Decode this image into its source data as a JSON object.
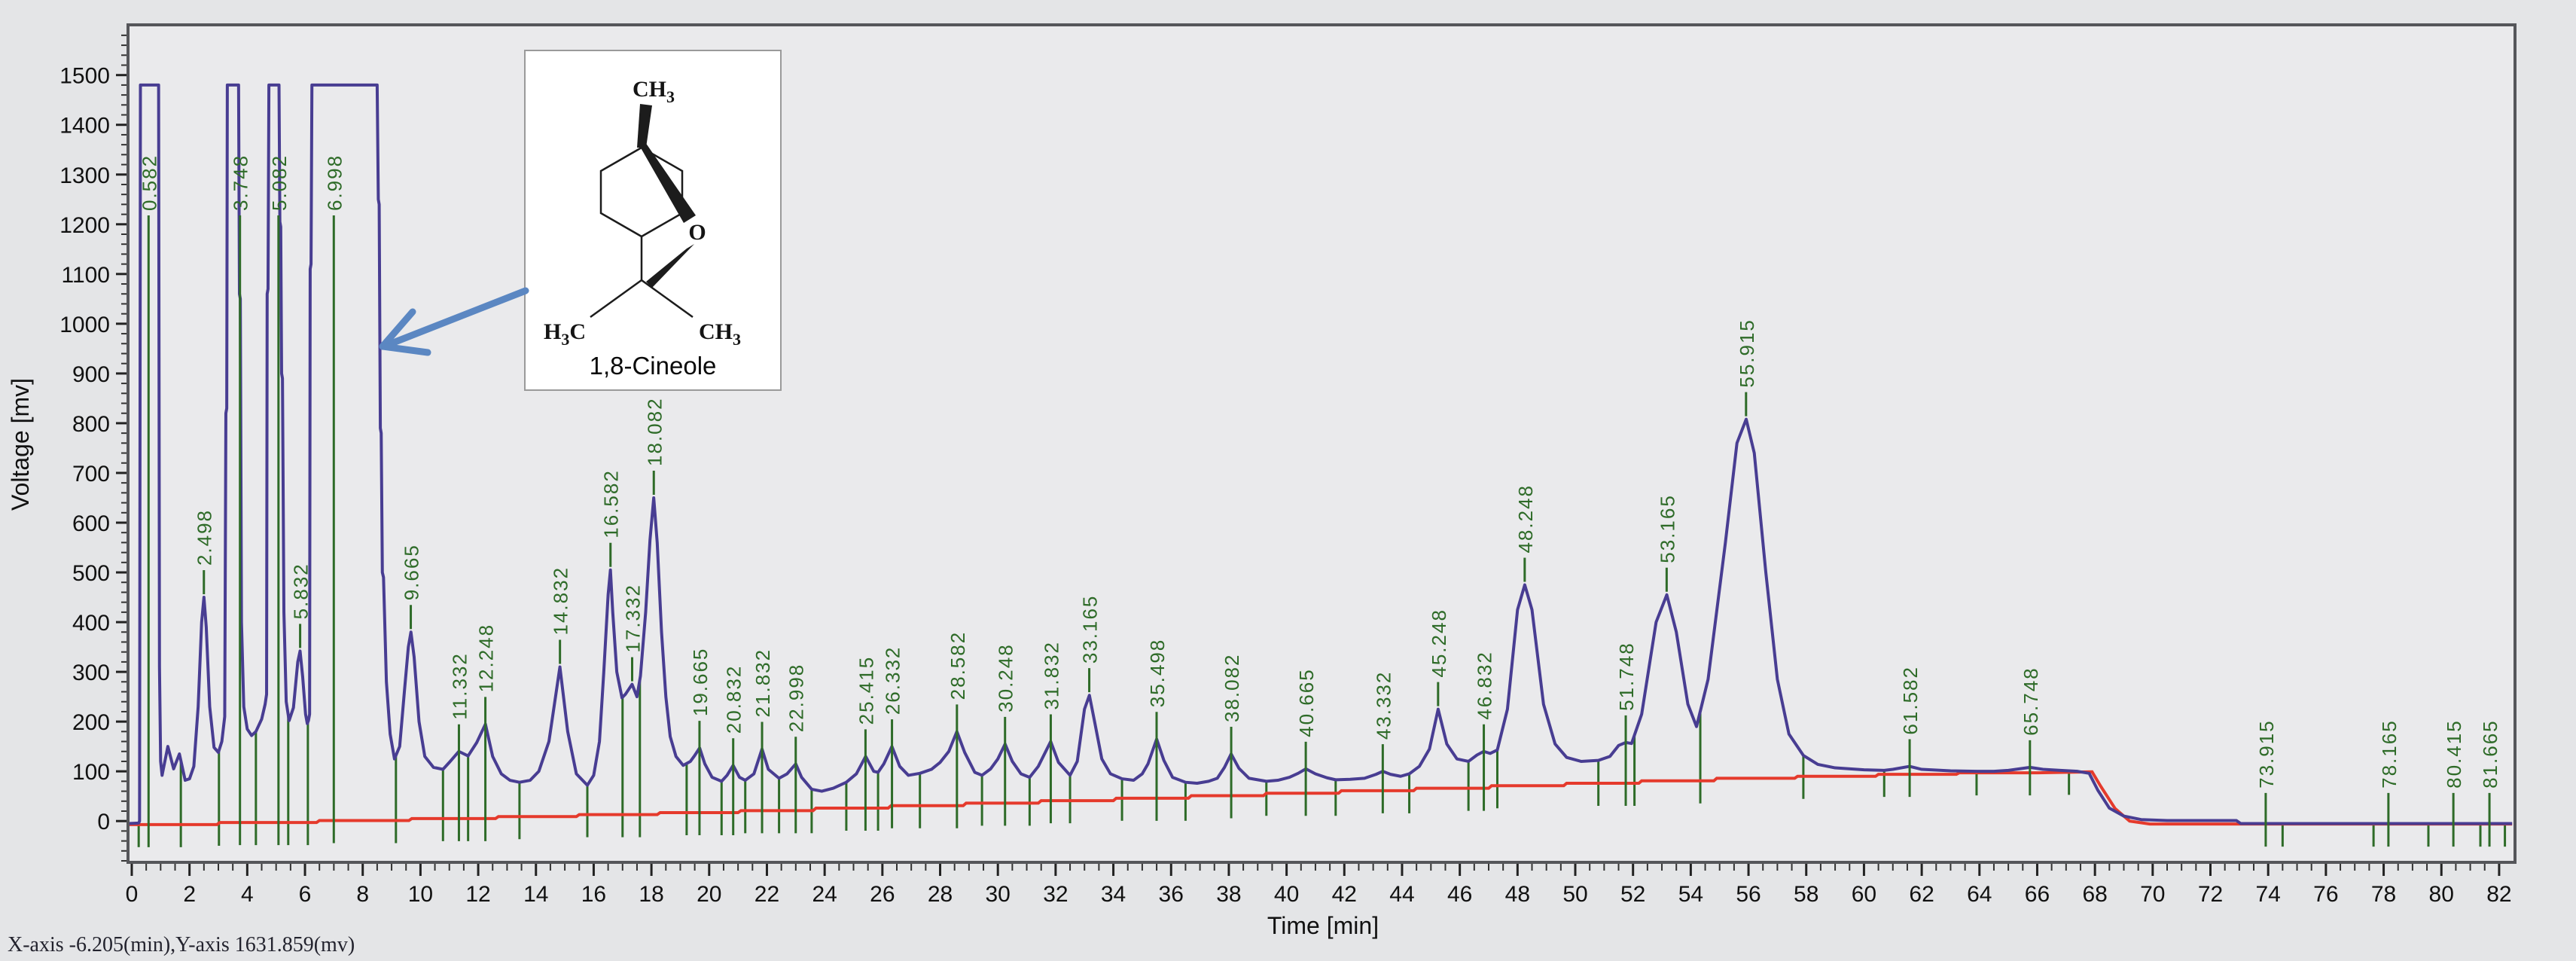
{
  "status_bar": {
    "text": "X-axis -6.205(min),Y-axis 1631.859(mv)"
  },
  "inset": {
    "caption": "1,8-Cineole",
    "atom_labels": {
      "top": "CH3",
      "bridge": "O",
      "left": "H3C",
      "right": "CH3"
    }
  },
  "chart_data": {
    "type": "line",
    "title": "",
    "xlabel": "Time [min]",
    "ylabel": "Voltage [mv]",
    "x_range_min": [
      -0.13,
      82.55
    ],
    "y_range_mv": [
      -83,
      1601
    ],
    "x_ticks_major": [
      0,
      2,
      4,
      6,
      8,
      10,
      12,
      14,
      16,
      18,
      20,
      22,
      24,
      26,
      28,
      30,
      32,
      34,
      36,
      38,
      40,
      42,
      44,
      46,
      48,
      50,
      52,
      54,
      56,
      58,
      60,
      62,
      64,
      66,
      68,
      70,
      72,
      74,
      76,
      78,
      80,
      82
    ],
    "x_tick_minor_step": 0.5,
    "y_ticks_major": [
      0,
      100,
      200,
      300,
      400,
      500,
      600,
      700,
      800,
      900,
      1000,
      1100,
      1200,
      1300,
      1400,
      1500
    ],
    "y_tick_minor_step": 20,
    "grid": false,
    "legend": "none",
    "saturation_level_mv": 1480,
    "colors": {
      "trace": "#483d92",
      "baseline": "#e53a2c",
      "peak_marks": "#2e6b28",
      "axis_border": "#55565a",
      "plot_bg": "#eaeaec",
      "page_bg": "#e4e5e7",
      "arrow": "#5b87c2"
    },
    "peaks": [
      {
        "rt": 0.582,
        "apex_mv": 1480,
        "saturated": true
      },
      {
        "rt": 2.498,
        "apex_mv": 450,
        "saturated": false
      },
      {
        "rt": 3.748,
        "apex_mv": 1480,
        "saturated": true
      },
      {
        "rt": 5.082,
        "apex_mv": 1480,
        "saturated": true
      },
      {
        "rt": 5.832,
        "apex_mv": 342,
        "saturated": false
      },
      {
        "rt": 6.998,
        "apex_mv": 1480,
        "saturated": true
      },
      {
        "rt": 9.665,
        "apex_mv": 380,
        "saturated": false
      },
      {
        "rt": 11.332,
        "apex_mv": 140,
        "saturated": false
      },
      {
        "rt": 12.248,
        "apex_mv": 195,
        "saturated": false
      },
      {
        "rt": 14.832,
        "apex_mv": 310,
        "saturated": false
      },
      {
        "rt": 16.582,
        "apex_mv": 505,
        "saturated": false
      },
      {
        "rt": 17.332,
        "apex_mv": 275,
        "saturated": false
      },
      {
        "rt": 18.082,
        "apex_mv": 650,
        "saturated": false
      },
      {
        "rt": 19.665,
        "apex_mv": 147,
        "saturated": false
      },
      {
        "rt": 20.832,
        "apex_mv": 112,
        "saturated": false
      },
      {
        "rt": 21.832,
        "apex_mv": 145,
        "saturated": false
      },
      {
        "rt": 22.998,
        "apex_mv": 115,
        "saturated": false
      },
      {
        "rt": 25.415,
        "apex_mv": 130,
        "saturated": false
      },
      {
        "rt": 26.332,
        "apex_mv": 150,
        "saturated": false
      },
      {
        "rt": 28.582,
        "apex_mv": 180,
        "saturated": false
      },
      {
        "rt": 30.248,
        "apex_mv": 155,
        "saturated": false
      },
      {
        "rt": 31.832,
        "apex_mv": 160,
        "saturated": false
      },
      {
        "rt": 33.165,
        "apex_mv": 253,
        "saturated": false
      },
      {
        "rt": 35.498,
        "apex_mv": 165,
        "saturated": false
      },
      {
        "rt": 38.082,
        "apex_mv": 135,
        "saturated": false
      },
      {
        "rt": 40.665,
        "apex_mv": 105,
        "saturated": false
      },
      {
        "rt": 43.332,
        "apex_mv": 100,
        "saturated": false
      },
      {
        "rt": 45.248,
        "apex_mv": 225,
        "saturated": false
      },
      {
        "rt": 46.832,
        "apex_mv": 140,
        "saturated": false
      },
      {
        "rt": 48.248,
        "apex_mv": 475,
        "saturated": false
      },
      {
        "rt": 51.748,
        "apex_mv": 158,
        "saturated": false
      },
      {
        "rt": 53.165,
        "apex_mv": 455,
        "saturated": false
      },
      {
        "rt": 55.915,
        "apex_mv": 808,
        "saturated": false
      },
      {
        "rt": 61.582,
        "apex_mv": 110,
        "saturated": false
      },
      {
        "rt": 65.748,
        "apex_mv": 108,
        "saturated": false
      },
      {
        "rt": 73.915,
        "apex_mv": 2,
        "saturated": false
      },
      {
        "rt": 78.165,
        "apex_mv": 2,
        "saturated": false
      },
      {
        "rt": 80.415,
        "apex_mv": 2,
        "saturated": false
      },
      {
        "rt": 81.665,
        "apex_mv": 2,
        "saturated": false
      }
    ],
    "boundary_marker_times_min": [
      0.24,
      1.7,
      3.02,
      4.3,
      5.42,
      6.1,
      9.15,
      10.78,
      11.65,
      13.43,
      15.78,
      17.0,
      17.6,
      19.22,
      20.43,
      21.25,
      22.42,
      23.55,
      24.75,
      25.85,
      27.3,
      29.45,
      31.1,
      32.5,
      34.3,
      36.5,
      39.3,
      41.7,
      44.25,
      46.3,
      47.3,
      50.8,
      52.05,
      54.33,
      57.9,
      60.7,
      63.9,
      67.1,
      74.5,
      77.65,
      79.55,
      81.35,
      82.2
    ],
    "trace_points": [
      [
        -0.13,
        -5
      ],
      [
        0.24,
        -4
      ],
      [
        0.27,
        0
      ],
      [
        0.3,
        1480
      ],
      [
        0.93,
        1480
      ],
      [
        0.96,
        310
      ],
      [
        1.0,
        120
      ],
      [
        1.05,
        92
      ],
      [
        1.25,
        150
      ],
      [
        1.45,
        105
      ],
      [
        1.65,
        135
      ],
      [
        1.85,
        82
      ],
      [
        2.0,
        85
      ],
      [
        2.15,
        110
      ],
      [
        2.3,
        230
      ],
      [
        2.42,
        400
      ],
      [
        2.5,
        450
      ],
      [
        2.58,
        390
      ],
      [
        2.7,
        230
      ],
      [
        2.85,
        148
      ],
      [
        3.0,
        138
      ],
      [
        3.12,
        160
      ],
      [
        3.22,
        210
      ],
      [
        3.26,
        820
      ],
      [
        3.29,
        830
      ],
      [
        3.31,
        1480
      ],
      [
        3.7,
        1480
      ],
      [
        3.73,
        1060
      ],
      [
        3.76,
        1050
      ],
      [
        3.8,
        400
      ],
      [
        3.88,
        230
      ],
      [
        4.0,
        185
      ],
      [
        4.15,
        172
      ],
      [
        4.3,
        180
      ],
      [
        4.5,
        205
      ],
      [
        4.62,
        235
      ],
      [
        4.67,
        255
      ],
      [
        4.69,
        1060
      ],
      [
        4.72,
        1070
      ],
      [
        4.75,
        1480
      ],
      [
        5.1,
        1480
      ],
      [
        5.13,
        1205
      ],
      [
        5.16,
        1195
      ],
      [
        5.19,
        900
      ],
      [
        5.22,
        890
      ],
      [
        5.27,
        420
      ],
      [
        5.35,
        240
      ],
      [
        5.45,
        202
      ],
      [
        5.6,
        228
      ],
      [
        5.75,
        320
      ],
      [
        5.83,
        342
      ],
      [
        5.92,
        290
      ],
      [
        6.02,
        215
      ],
      [
        6.08,
        196
      ],
      [
        6.12,
        202
      ],
      [
        6.16,
        215
      ],
      [
        6.18,
        1110
      ],
      [
        6.21,
        1120
      ],
      [
        6.24,
        1480
      ],
      [
        8.5,
        1480
      ],
      [
        8.54,
        1250
      ],
      [
        8.57,
        1240
      ],
      [
        8.61,
        790
      ],
      [
        8.64,
        780
      ],
      [
        8.68,
        500
      ],
      [
        8.72,
        490
      ],
      [
        8.82,
        280
      ],
      [
        8.95,
        175
      ],
      [
        9.1,
        125
      ],
      [
        9.28,
        150
      ],
      [
        9.45,
        265
      ],
      [
        9.58,
        350
      ],
      [
        9.67,
        380
      ],
      [
        9.78,
        330
      ],
      [
        9.95,
        200
      ],
      [
        10.15,
        130
      ],
      [
        10.45,
        108
      ],
      [
        10.78,
        104
      ],
      [
        11.0,
        118
      ],
      [
        11.33,
        140
      ],
      [
        11.65,
        131
      ],
      [
        11.95,
        158
      ],
      [
        12.25,
        195
      ],
      [
        12.5,
        130
      ],
      [
        12.8,
        95
      ],
      [
        13.1,
        82
      ],
      [
        13.43,
        78
      ],
      [
        13.8,
        82
      ],
      [
        14.1,
        100
      ],
      [
        14.45,
        160
      ],
      [
        14.83,
        310
      ],
      [
        15.1,
        180
      ],
      [
        15.4,
        95
      ],
      [
        15.78,
        72
      ],
      [
        16.0,
        92
      ],
      [
        16.2,
        160
      ],
      [
        16.35,
        300
      ],
      [
        16.5,
        455
      ],
      [
        16.58,
        505
      ],
      [
        16.66,
        420
      ],
      [
        16.8,
        300
      ],
      [
        16.98,
        248
      ],
      [
        17.1,
        255
      ],
      [
        17.33,
        275
      ],
      [
        17.5,
        250
      ],
      [
        17.62,
        292
      ],
      [
        17.8,
        420
      ],
      [
        17.95,
        565
      ],
      [
        18.08,
        650
      ],
      [
        18.2,
        560
      ],
      [
        18.35,
        380
      ],
      [
        18.5,
        250
      ],
      [
        18.65,
        170
      ],
      [
        18.85,
        130
      ],
      [
        19.1,
        112
      ],
      [
        19.35,
        120
      ],
      [
        19.5,
        132
      ],
      [
        19.67,
        147
      ],
      [
        19.85,
        115
      ],
      [
        20.1,
        88
      ],
      [
        20.43,
        80
      ],
      [
        20.62,
        92
      ],
      [
        20.83,
        112
      ],
      [
        21.05,
        88
      ],
      [
        21.25,
        82
      ],
      [
        21.55,
        95
      ],
      [
        21.83,
        145
      ],
      [
        22.05,
        104
      ],
      [
        22.42,
        86
      ],
      [
        22.7,
        95
      ],
      [
        23.0,
        115
      ],
      [
        23.2,
        88
      ],
      [
        23.55,
        64
      ],
      [
        23.9,
        60
      ],
      [
        24.3,
        66
      ],
      [
        24.75,
        78
      ],
      [
        25.1,
        95
      ],
      [
        25.42,
        130
      ],
      [
        25.7,
        100
      ],
      [
        25.85,
        98
      ],
      [
        26.05,
        115
      ],
      [
        26.33,
        150
      ],
      [
        26.6,
        110
      ],
      [
        26.9,
        92
      ],
      [
        27.3,
        96
      ],
      [
        27.7,
        104
      ],
      [
        28.0,
        118
      ],
      [
        28.3,
        140
      ],
      [
        28.58,
        180
      ],
      [
        28.85,
        138
      ],
      [
        29.2,
        98
      ],
      [
        29.45,
        92
      ],
      [
        29.75,
        105
      ],
      [
        30.0,
        125
      ],
      [
        30.25,
        155
      ],
      [
        30.5,
        120
      ],
      [
        30.8,
        95
      ],
      [
        31.1,
        88
      ],
      [
        31.4,
        110
      ],
      [
        31.83,
        160
      ],
      [
        32.1,
        118
      ],
      [
        32.5,
        92
      ],
      [
        32.75,
        120
      ],
      [
        33.0,
        225
      ],
      [
        33.17,
        253
      ],
      [
        33.35,
        200
      ],
      [
        33.6,
        125
      ],
      [
        33.9,
        95
      ],
      [
        34.3,
        85
      ],
      [
        34.7,
        82
      ],
      [
        35.0,
        95
      ],
      [
        35.2,
        115
      ],
      [
        35.5,
        165
      ],
      [
        35.75,
        122
      ],
      [
        36.05,
        88
      ],
      [
        36.5,
        78
      ],
      [
        36.9,
        76
      ],
      [
        37.3,
        80
      ],
      [
        37.6,
        86
      ],
      [
        37.85,
        108
      ],
      [
        38.08,
        135
      ],
      [
        38.35,
        106
      ],
      [
        38.7,
        86
      ],
      [
        39.3,
        80
      ],
      [
        39.7,
        82
      ],
      [
        40.1,
        88
      ],
      [
        40.4,
        96
      ],
      [
        40.67,
        105
      ],
      [
        41.0,
        95
      ],
      [
        41.4,
        87
      ],
      [
        41.7,
        83
      ],
      [
        42.2,
        84
      ],
      [
        42.7,
        86
      ],
      [
        43.1,
        94
      ],
      [
        43.33,
        100
      ],
      [
        43.6,
        94
      ],
      [
        43.95,
        90
      ],
      [
        44.25,
        95
      ],
      [
        44.6,
        110
      ],
      [
        44.95,
        145
      ],
      [
        45.25,
        225
      ],
      [
        45.55,
        155
      ],
      [
        45.9,
        125
      ],
      [
        46.3,
        120
      ],
      [
        46.6,
        133
      ],
      [
        46.83,
        140
      ],
      [
        47.05,
        136
      ],
      [
        47.3,
        143
      ],
      [
        47.65,
        225
      ],
      [
        48.0,
        425
      ],
      [
        48.25,
        475
      ],
      [
        48.5,
        425
      ],
      [
        48.9,
        235
      ],
      [
        49.3,
        155
      ],
      [
        49.7,
        128
      ],
      [
        50.2,
        120
      ],
      [
        50.8,
        122
      ],
      [
        51.2,
        130
      ],
      [
        51.5,
        152
      ],
      [
        51.75,
        158
      ],
      [
        51.95,
        156
      ],
      [
        52.3,
        215
      ],
      [
        52.8,
        400
      ],
      [
        53.17,
        455
      ],
      [
        53.5,
        380
      ],
      [
        53.9,
        235
      ],
      [
        54.2,
        190
      ],
      [
        54.6,
        285
      ],
      [
        55.2,
        560
      ],
      [
        55.6,
        760
      ],
      [
        55.92,
        808
      ],
      [
        56.2,
        740
      ],
      [
        56.6,
        500
      ],
      [
        57.0,
        285
      ],
      [
        57.4,
        175
      ],
      [
        57.9,
        132
      ],
      [
        58.4,
        114
      ],
      [
        59.0,
        107
      ],
      [
        60.0,
        103
      ],
      [
        60.7,
        102
      ],
      [
        61.0,
        104
      ],
      [
        61.58,
        110
      ],
      [
        62.0,
        104
      ],
      [
        63.0,
        101
      ],
      [
        63.9,
        100
      ],
      [
        64.5,
        100
      ],
      [
        65.0,
        102
      ],
      [
        65.75,
        108
      ],
      [
        66.2,
        104
      ],
      [
        66.8,
        102
      ],
      [
        67.4,
        100
      ],
      [
        67.8,
        96
      ],
      [
        68.1,
        62
      ],
      [
        68.5,
        26
      ],
      [
        69.0,
        10
      ],
      [
        69.6,
        3
      ],
      [
        70.5,
        1
      ],
      [
        72.9,
        1
      ],
      [
        73.05,
        -5
      ],
      [
        74.5,
        -5
      ],
      [
        78.0,
        -5
      ],
      [
        82.45,
        -5
      ]
    ],
    "baseline_points": [
      [
        -0.13,
        -7
      ],
      [
        2.95,
        -7
      ],
      [
        3.05,
        -3
      ],
      [
        6.4,
        -3
      ],
      [
        6.5,
        1
      ],
      [
        9.6,
        1
      ],
      [
        9.7,
        5
      ],
      [
        12.6,
        5
      ],
      [
        12.7,
        9
      ],
      [
        15.4,
        9
      ],
      [
        15.5,
        13
      ],
      [
        18.2,
        13
      ],
      [
        18.3,
        17
      ],
      [
        21.0,
        17
      ],
      [
        21.1,
        21
      ],
      [
        23.6,
        21
      ],
      [
        23.7,
        26
      ],
      [
        26.2,
        26
      ],
      [
        26.3,
        31
      ],
      [
        28.8,
        31
      ],
      [
        28.9,
        36
      ],
      [
        31.4,
        36
      ],
      [
        31.5,
        41
      ],
      [
        34.0,
        41
      ],
      [
        34.1,
        46
      ],
      [
        36.6,
        46
      ],
      [
        36.7,
        51
      ],
      [
        39.2,
        51
      ],
      [
        39.3,
        56
      ],
      [
        41.8,
        56
      ],
      [
        41.9,
        61
      ],
      [
        44.4,
        61
      ],
      [
        44.5,
        66
      ],
      [
        47.0,
        66
      ],
      [
        47.1,
        71
      ],
      [
        49.6,
        71
      ],
      [
        49.7,
        76
      ],
      [
        52.2,
        76
      ],
      [
        52.3,
        81
      ],
      [
        54.8,
        81
      ],
      [
        54.9,
        86
      ],
      [
        57.6,
        86
      ],
      [
        57.7,
        90
      ],
      [
        60.4,
        90
      ],
      [
        60.5,
        94
      ],
      [
        63.2,
        94
      ],
      [
        63.3,
        97
      ],
      [
        66.0,
        97
      ],
      [
        67.9,
        99
      ],
      [
        68.2,
        70
      ],
      [
        68.7,
        25
      ],
      [
        69.2,
        0
      ],
      [
        69.9,
        -6
      ],
      [
        82.45,
        -6
      ]
    ]
  }
}
